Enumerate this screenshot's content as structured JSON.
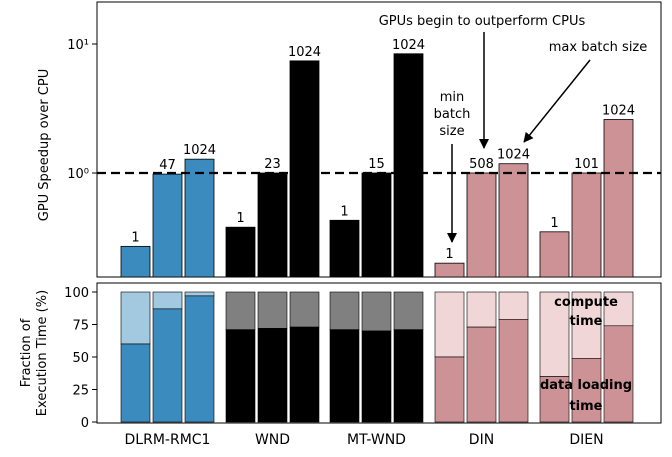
{
  "chart_data": [
    {
      "type": "bar",
      "ylabel": "GPU Speedup over CPU",
      "yscale": "log",
      "ylim": [
        0.1,
        30
      ],
      "yticks": [
        {
          "value": 1,
          "label": "10⁰"
        },
        {
          "value": 10,
          "label": "10¹"
        }
      ],
      "reference_line": {
        "value": 1,
        "style": "dashed"
      },
      "groups": [
        {
          "name": "DLRM-RMC1",
          "color": "#3b8bbf",
          "bars": [
            {
              "label": "1",
              "value": 0.27
            },
            {
              "label": "47",
              "value": 0.98
            },
            {
              "label": "1024",
              "value": 1.28
            }
          ]
        },
        {
          "name": "WND",
          "color": "#000000",
          "bars": [
            {
              "label": "1",
              "value": 0.38
            },
            {
              "label": "23",
              "value": 1.0
            },
            {
              "label": "1024",
              "value": 7.4
            }
          ]
        },
        {
          "name": "MT-WND",
          "color": "#000000",
          "bars": [
            {
              "label": "1",
              "value": 0.43
            },
            {
              "label": "15",
              "value": 1.0
            },
            {
              "label": "1024",
              "value": 8.4
            }
          ]
        },
        {
          "name": "DIN",
          "color": "#cd9295",
          "bars": [
            {
              "label": "1",
              "value": 0.2
            },
            {
              "label": "508",
              "value": 1.0
            },
            {
              "label": "1024",
              "value": 1.18
            }
          ]
        },
        {
          "name": "DIEN",
          "color": "#cd9295",
          "bars": [
            {
              "label": "1",
              "value": 0.35
            },
            {
              "label": "101",
              "value": 1.0
            },
            {
              "label": "1024",
              "value": 2.6
            }
          ]
        }
      ],
      "annotations": {
        "gpus_outperform": "GPUs begin to outperform CPUs",
        "max_batch": "max batch size",
        "min_batch": [
          "min",
          "batch",
          "size"
        ]
      }
    },
    {
      "type": "stacked-bar",
      "ylabel_lines": [
        "Fraction of",
        "Execution Time (%)"
      ],
      "ylim": [
        0,
        100
      ],
      "yticks": [
        0,
        25,
        50,
        75,
        100
      ],
      "categories": [
        "DLRM-RMC1",
        "WND",
        "MT-WND",
        "DIN",
        "DIEN"
      ],
      "series_labels": {
        "top": [
          "compute",
          "time"
        ],
        "bottom": [
          "data loading",
          "time"
        ]
      },
      "groups": [
        {
          "name": "DLRM-RMC1",
          "bottom_color": "#3b8bbf",
          "top_color": "#a3c9e1",
          "bottom": [
            60,
            87,
            97
          ],
          "total": [
            100,
            100,
            100
          ]
        },
        {
          "name": "WND",
          "bottom_color": "#000000",
          "top_color": "#808080",
          "bottom": [
            71,
            72,
            73
          ],
          "total": [
            100,
            100,
            100
          ]
        },
        {
          "name": "MT-WND",
          "bottom_color": "#000000",
          "top_color": "#808080",
          "bottom": [
            71,
            70,
            71
          ],
          "total": [
            100,
            100,
            100
          ]
        },
        {
          "name": "DIN",
          "bottom_color": "#cd9295",
          "top_color": "#f0d6d7",
          "bottom": [
            50,
            73,
            79
          ],
          "total": [
            100,
            100,
            100
          ]
        },
        {
          "name": "DIEN",
          "bottom_color": "#cd9295",
          "top_color": "#f0d6d7",
          "bottom": [
            35,
            49,
            74
          ],
          "total": [
            100,
            100,
            100
          ]
        }
      ]
    }
  ]
}
